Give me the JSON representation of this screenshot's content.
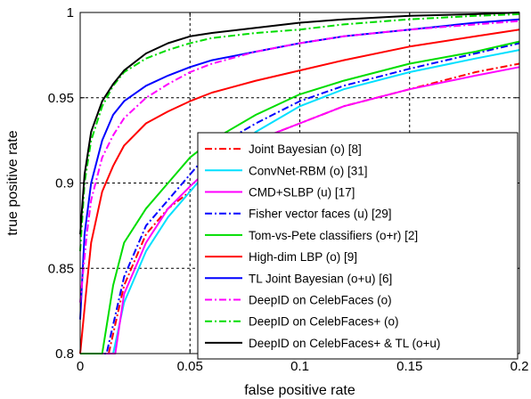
{
  "chart_data": {
    "type": "line",
    "title": "",
    "xlabel": "false positive rate",
    "ylabel": "true positive rate",
    "xlim": [
      0,
      0.2
    ],
    "ylim": [
      0.8,
      1.0
    ],
    "xticks": [
      0,
      0.05,
      0.1,
      0.15,
      0.2
    ],
    "yticks": [
      0.8,
      0.85,
      0.9,
      0.95,
      1.0
    ],
    "xtick_labels": [
      "0",
      "0.05",
      "0.1",
      "0.15",
      "0.2"
    ],
    "ytick_labels": [
      "0.8",
      "0.85",
      "0.9",
      "0.95",
      "1"
    ],
    "grid": true,
    "legend_position": "bottom-right",
    "series": [
      {
        "name": "Joint Bayesian (o) [8]",
        "color": "#ff0000",
        "dash": "dashdot",
        "x": [
          0.0,
          0.013,
          0.02,
          0.03,
          0.04,
          0.05,
          0.06,
          0.08,
          0.1,
          0.12,
          0.15,
          0.18,
          0.2
        ],
        "y": [
          0.8,
          0.8,
          0.84,
          0.87,
          0.885,
          0.895,
          0.91,
          0.925,
          0.935,
          0.945,
          0.955,
          0.965,
          0.97
        ]
      },
      {
        "name": "ConvNet-RBM (o) [31]",
        "color": "#00e0ff",
        "dash": "solid",
        "x": [
          0.0,
          0.015,
          0.02,
          0.03,
          0.04,
          0.05,
          0.06,
          0.08,
          0.1,
          0.12,
          0.15,
          0.18,
          0.2
        ],
        "y": [
          0.8,
          0.8,
          0.83,
          0.86,
          0.88,
          0.895,
          0.91,
          0.93,
          0.945,
          0.955,
          0.965,
          0.973,
          0.978
        ]
      },
      {
        "name": "CMD+SLBP (u) [17]",
        "color": "#ff00ff",
        "dash": "solid",
        "x": [
          0.0,
          0.016,
          0.02,
          0.03,
          0.04,
          0.05,
          0.06,
          0.08,
          0.1,
          0.12,
          0.15,
          0.18,
          0.2
        ],
        "y": [
          0.8,
          0.8,
          0.835,
          0.865,
          0.885,
          0.898,
          0.91,
          0.925,
          0.935,
          0.945,
          0.955,
          0.963,
          0.968
        ]
      },
      {
        "name": "Fisher vector faces (u) [29]",
        "color": "#0000ff",
        "dash": "dashdot",
        "x": [
          0.0,
          0.012,
          0.02,
          0.03,
          0.04,
          0.05,
          0.06,
          0.08,
          0.1,
          0.12,
          0.15,
          0.18,
          0.2
        ],
        "y": [
          0.8,
          0.8,
          0.845,
          0.875,
          0.89,
          0.905,
          0.92,
          0.935,
          0.948,
          0.957,
          0.967,
          0.976,
          0.982
        ]
      },
      {
        "name": "Tom-vs-Pete classifiers (o+r) [2]",
        "color": "#00dd00",
        "dash": "solid",
        "x": [
          0.0,
          0.01,
          0.015,
          0.02,
          0.03,
          0.04,
          0.05,
          0.06,
          0.08,
          0.1,
          0.12,
          0.15,
          0.18,
          0.2
        ],
        "y": [
          0.8,
          0.8,
          0.84,
          0.865,
          0.885,
          0.9,
          0.915,
          0.925,
          0.94,
          0.952,
          0.96,
          0.97,
          0.977,
          0.983
        ]
      },
      {
        "name": "High-dim LBP (o) [9]",
        "color": "#ff0000",
        "dash": "solid",
        "x": [
          0.0,
          0.003,
          0.005,
          0.01,
          0.015,
          0.02,
          0.03,
          0.04,
          0.05,
          0.06,
          0.08,
          0.1,
          0.12,
          0.15,
          0.18,
          0.2
        ],
        "y": [
          0.8,
          0.84,
          0.865,
          0.895,
          0.91,
          0.922,
          0.935,
          0.942,
          0.948,
          0.953,
          0.96,
          0.966,
          0.972,
          0.98,
          0.986,
          0.99
        ]
      },
      {
        "name": "TL Joint Bayesian (o+u)    [6]",
        "color": "#0000ff",
        "dash": "solid",
        "x": [
          0.0,
          0.002,
          0.005,
          0.01,
          0.015,
          0.02,
          0.03,
          0.04,
          0.05,
          0.06,
          0.08,
          0.1,
          0.12,
          0.15,
          0.18,
          0.2
        ],
        "y": [
          0.82,
          0.87,
          0.9,
          0.925,
          0.94,
          0.948,
          0.957,
          0.963,
          0.968,
          0.972,
          0.977,
          0.982,
          0.986,
          0.99,
          0.994,
          0.996
        ]
      },
      {
        "name": "DeepID on CelebFaces (o)",
        "color": "#ff00ff",
        "dash": "dashdot",
        "x": [
          0.0,
          0.003,
          0.005,
          0.01,
          0.015,
          0.02,
          0.03,
          0.04,
          0.05,
          0.06,
          0.08,
          0.1,
          0.12,
          0.15,
          0.18,
          0.2
        ],
        "y": [
          0.83,
          0.87,
          0.89,
          0.915,
          0.928,
          0.938,
          0.95,
          0.958,
          0.965,
          0.97,
          0.977,
          0.982,
          0.986,
          0.99,
          0.993,
          0.995
        ]
      },
      {
        "name": "DeepID on CelebFaces+ (o)",
        "color": "#00dd00",
        "dash": "dashdot",
        "x": [
          0.0,
          0.002,
          0.005,
          0.01,
          0.015,
          0.02,
          0.03,
          0.04,
          0.05,
          0.06,
          0.08,
          0.1,
          0.12,
          0.15,
          0.18,
          0.2
        ],
        "y": [
          0.86,
          0.9,
          0.925,
          0.945,
          0.957,
          0.965,
          0.973,
          0.978,
          0.982,
          0.985,
          0.988,
          0.99,
          0.993,
          0.996,
          0.998,
          0.999
        ]
      },
      {
        "name": "DeepID on CelebFaces+ & TL (o+u)",
        "color": "#000000",
        "dash": "solid",
        "x": [
          0.0,
          0.002,
          0.005,
          0.01,
          0.015,
          0.02,
          0.03,
          0.04,
          0.05,
          0.06,
          0.08,
          0.1,
          0.12,
          0.15,
          0.18,
          0.2
        ],
        "y": [
          0.87,
          0.905,
          0.93,
          0.948,
          0.958,
          0.966,
          0.976,
          0.982,
          0.986,
          0.988,
          0.991,
          0.994,
          0.996,
          0.998,
          0.999,
          1.0
        ]
      }
    ]
  }
}
